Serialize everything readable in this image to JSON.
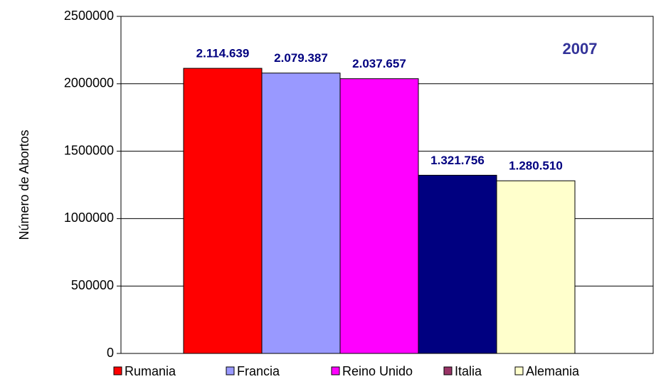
{
  "chart_data": {
    "type": "bar",
    "title": "2007",
    "y_label": "Número de Abortos",
    "series": [
      {
        "name": "Rumania",
        "color": "#ff0000",
        "legend_color": "#ff0000",
        "values": [
          2114639
        ],
        "value_labels": [
          "2.114.639"
        ]
      },
      {
        "name": "Francia",
        "color": "#9999ff",
        "legend_color": "#9999ff",
        "values": [
          2079387
        ],
        "value_labels": [
          "2.079.387"
        ]
      },
      {
        "name": "Reino Unido",
        "color": "#ff00ff",
        "legend_color": "#ff00ff",
        "values": [
          2037657
        ],
        "value_labels": [
          "2.037.657"
        ]
      },
      {
        "name": "Italia",
        "color": "#000080",
        "legend_color": "#993366",
        "values": [
          1321756
        ],
        "value_labels": [
          "1.321.756"
        ]
      },
      {
        "name": "Alemania",
        "color": "#ffffcc",
        "legend_color": "#ffffcc",
        "values": [
          1280510
        ],
        "value_labels": [
          "1.280.510"
        ]
      }
    ],
    "ylim": [
      0,
      2500000
    ],
    "yticks": [
      0,
      500000,
      1000000,
      1500000,
      2000000,
      2500000
    ],
    "grid": true,
    "legend": "bottom"
  }
}
